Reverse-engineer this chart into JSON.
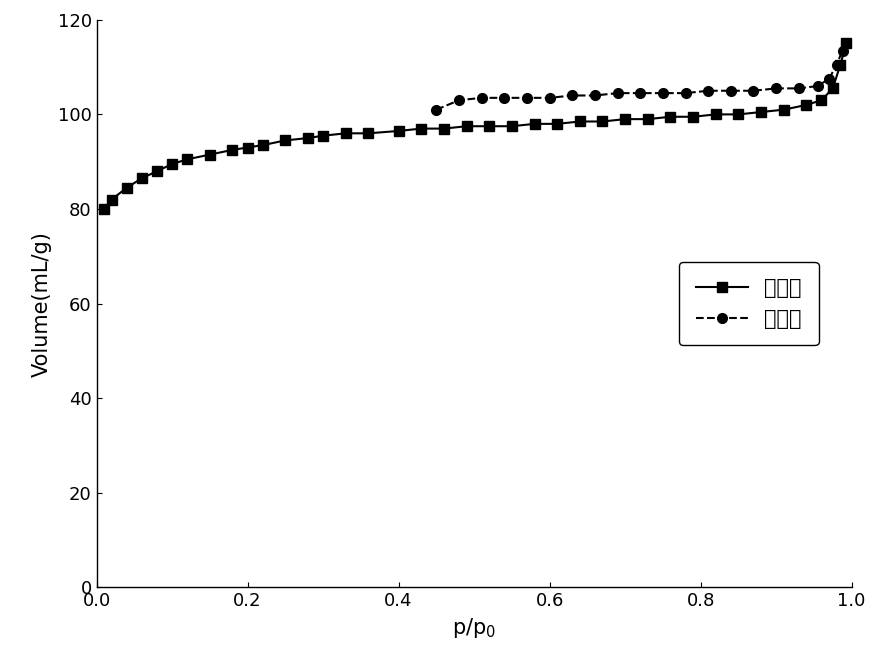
{
  "adsorption_x": [
    0.01,
    0.02,
    0.04,
    0.06,
    0.08,
    0.1,
    0.12,
    0.15,
    0.18,
    0.2,
    0.22,
    0.25,
    0.28,
    0.3,
    0.33,
    0.36,
    0.4,
    0.43,
    0.46,
    0.49,
    0.52,
    0.55,
    0.58,
    0.61,
    0.64,
    0.67,
    0.7,
    0.73,
    0.76,
    0.79,
    0.82,
    0.85,
    0.88,
    0.91,
    0.94,
    0.96,
    0.975,
    0.985,
    0.993
  ],
  "adsorption_y": [
    80.0,
    82.0,
    84.5,
    86.5,
    88.0,
    89.5,
    90.5,
    91.5,
    92.5,
    93.0,
    93.5,
    94.5,
    95.0,
    95.5,
    96.0,
    96.0,
    96.5,
    97.0,
    97.0,
    97.5,
    97.5,
    97.5,
    98.0,
    98.0,
    98.5,
    98.5,
    99.0,
    99.0,
    99.5,
    99.5,
    100.0,
    100.0,
    100.5,
    101.0,
    102.0,
    103.0,
    105.5,
    110.5,
    115.0
  ],
  "desorption_x": [
    0.45,
    0.48,
    0.51,
    0.54,
    0.57,
    0.6,
    0.63,
    0.66,
    0.69,
    0.72,
    0.75,
    0.78,
    0.81,
    0.84,
    0.87,
    0.9,
    0.93,
    0.955,
    0.97,
    0.98,
    0.988,
    0.993
  ],
  "desorption_y": [
    101.0,
    103.0,
    103.5,
    103.5,
    103.5,
    103.5,
    104.0,
    104.0,
    104.5,
    104.5,
    104.5,
    104.5,
    105.0,
    105.0,
    105.0,
    105.5,
    105.5,
    106.0,
    107.5,
    110.5,
    113.5,
    115.0
  ],
  "xlabel": "p/p$_0$",
  "ylabel": "Volume(mL/g)",
  "xlim": [
    0.0,
    1.0
  ],
  "ylim": [
    0,
    120
  ],
  "yticks": [
    0,
    20,
    40,
    60,
    80,
    100,
    120
  ],
  "xticks": [
    0.0,
    0.2,
    0.4,
    0.6,
    0.8,
    1.0
  ],
  "legend_adsorption": "吸附线",
  "legend_desorption": "脱附线",
  "line_color": "#000000",
  "marker_square": "s",
  "marker_circle": "o",
  "markersize": 7,
  "linewidth": 1.5,
  "font_size_label": 15,
  "font_size_tick": 13,
  "font_size_legend": 15,
  "background_color": "#ffffff"
}
